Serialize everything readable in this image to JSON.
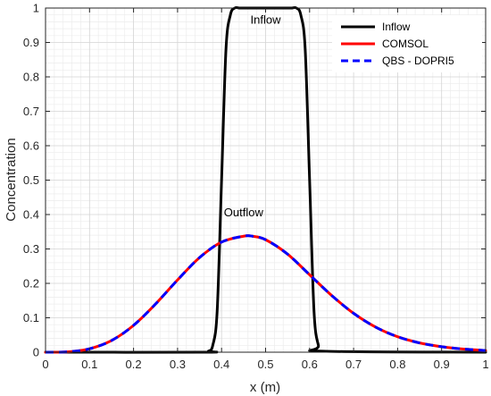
{
  "chart_data": {
    "type": "line",
    "xlabel": "x (m)",
    "ylabel": "Concentration",
    "xlim": [
      0,
      1
    ],
    "ylim": [
      0,
      1
    ],
    "xticks": [
      "0",
      "0.1",
      "0.2",
      "0.3",
      "0.4",
      "0.5",
      "0.6",
      "0.7",
      "0.8",
      "0.9",
      "1"
    ],
    "yticks": [
      "0",
      "0.1",
      "0.2",
      "0.3",
      "0.4",
      "0.5",
      "0.6",
      "0.7",
      "0.8",
      "0.9",
      "1"
    ],
    "grid": true,
    "minor_grid": true,
    "legend_position": "top-right",
    "annotations": [
      {
        "text": "Inflow",
        "x": 0.5,
        "y": 0.955
      },
      {
        "text": "Outflow",
        "x": 0.45,
        "y": 0.395
      }
    ],
    "series": [
      {
        "name": "Inflow",
        "color": "#000000",
        "style": "solid",
        "x": [
          0,
          0.36,
          0.37,
          0.38,
          0.39,
          0.4,
          0.41,
          0.42,
          0.43,
          0.44,
          0.45,
          0.55,
          0.56,
          0.57,
          0.58,
          0.59,
          0.6,
          0.61,
          0.62,
          0.63,
          1.0
        ],
        "y": [
          0,
          0,
          0.003,
          0.02,
          0.12,
          0.5,
          0.88,
          0.98,
          1.0,
          1.0,
          1.0,
          1.0,
          1.0,
          1.0,
          0.98,
          0.88,
          0.5,
          0.12,
          0.02,
          0.003,
          0
        ]
      },
      {
        "name": "COMSOL",
        "color": "#ff0000",
        "style": "solid",
        "x": [
          0,
          0.05,
          0.1,
          0.15,
          0.2,
          0.25,
          0.3,
          0.35,
          0.4,
          0.45,
          0.47,
          0.5,
          0.55,
          0.6,
          0.65,
          0.7,
          0.75,
          0.8,
          0.85,
          0.9,
          0.95,
          1.0
        ],
        "y": [
          0,
          0.001,
          0.01,
          0.034,
          0.078,
          0.14,
          0.21,
          0.275,
          0.32,
          0.337,
          0.337,
          0.327,
          0.285,
          0.225,
          0.165,
          0.113,
          0.073,
          0.045,
          0.027,
          0.016,
          0.009,
          0.005
        ]
      },
      {
        "name": "QBS - DOPRI5",
        "color": "#0000ff",
        "style": "dashed",
        "x": [
          0,
          0.05,
          0.1,
          0.15,
          0.2,
          0.25,
          0.3,
          0.35,
          0.4,
          0.45,
          0.47,
          0.5,
          0.55,
          0.6,
          0.65,
          0.7,
          0.75,
          0.8,
          0.85,
          0.9,
          0.95,
          1.0
        ],
        "y": [
          0,
          0.001,
          0.01,
          0.034,
          0.078,
          0.14,
          0.21,
          0.275,
          0.32,
          0.337,
          0.337,
          0.327,
          0.285,
          0.225,
          0.165,
          0.113,
          0.073,
          0.045,
          0.027,
          0.016,
          0.009,
          0.005
        ]
      }
    ]
  }
}
